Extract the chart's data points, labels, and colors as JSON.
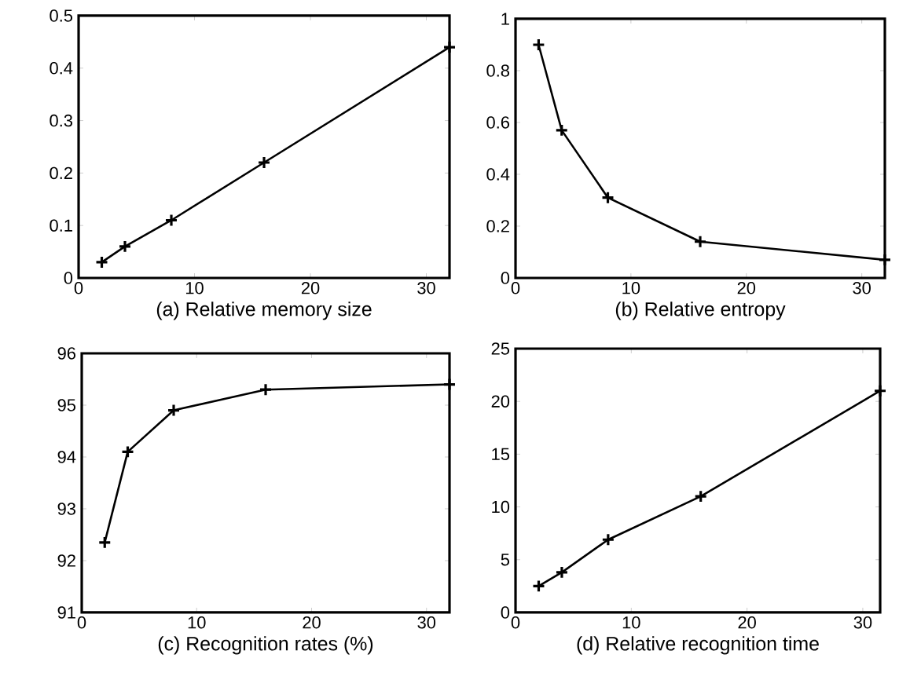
{
  "chart_data": [
    {
      "type": "line",
      "xlabel": "(a) Relative memory size",
      "x": [
        2,
        4,
        8,
        16,
        32
      ],
      "xlim": [
        0,
        32
      ],
      "xticks": [
        0,
        10,
        20,
        30
      ],
      "ylim": [
        0,
        0.5
      ],
      "yticks": [
        0,
        0.1,
        0.2,
        0.3,
        0.4,
        0.5
      ],
      "marker": "cross",
      "line_style": "solid",
      "series": [
        {
          "color": "#000000",
          "values": [
            0.03,
            0.06,
            0.11,
            0.22,
            0.44
          ]
        }
      ]
    },
    {
      "type": "line",
      "xlabel": "(b) Relative entropy",
      "x": [
        2,
        4,
        8,
        16,
        32
      ],
      "xlim": [
        0,
        32
      ],
      "xticks": [
        0,
        10,
        20,
        30
      ],
      "ylim": [
        0,
        1
      ],
      "yticks": [
        0,
        0.2,
        0.4,
        0.6,
        0.8,
        1
      ],
      "marker": "cross",
      "line_style": "solid",
      "series": [
        {
          "color": "#000000",
          "values": [
            0.9,
            0.57,
            0.31,
            0.14,
            0.07
          ]
        }
      ]
    },
    {
      "type": "line",
      "xlabel": "(c) Recognition rates (%)",
      "x": [
        2,
        4,
        8,
        16,
        32
      ],
      "xlim": [
        0,
        32
      ],
      "xticks": [
        0,
        10,
        20,
        30
      ],
      "ylim": [
        91,
        96
      ],
      "yticks": [
        91,
        92,
        93,
        94,
        95,
        96
      ],
      "marker": "cross",
      "line_style": "solid",
      "series": [
        {
          "color": "#000000",
          "values": [
            92.35,
            94.1,
            94.9,
            95.3,
            95.4
          ]
        }
      ]
    },
    {
      "type": "line",
      "xlabel": "(d) Relative recognition time",
      "x": [
        2,
        4,
        8,
        16,
        31.5
      ],
      "xlim": [
        0,
        31.5
      ],
      "xticks": [
        0,
        10,
        20,
        30
      ],
      "ylim": [
        0,
        25
      ],
      "yticks": [
        0,
        5,
        10,
        15,
        20,
        25
      ],
      "marker": "cross",
      "line_style": "solid",
      "series": [
        {
          "color": "#000000",
          "values": [
            2.5,
            3.8,
            6.9,
            11,
            21
          ]
        }
      ]
    }
  ]
}
